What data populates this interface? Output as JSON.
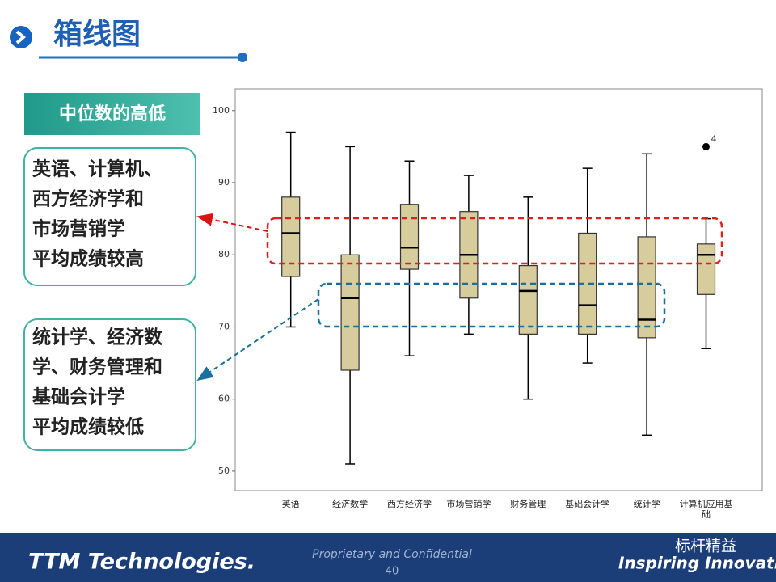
{
  "header": {
    "title": "箱线图"
  },
  "side": {
    "label": "中位数的高低",
    "box_high": {
      "lines": [
        "英语、计算机、",
        "西方经济学和",
        "市场营销学"
      ],
      "conclusion": "平均成绩较高"
    },
    "box_low": {
      "lines": [
        "统计学、经济数",
        "学、财务管理和",
        "基础会计学"
      ],
      "conclusion": "平均成绩较低"
    }
  },
  "chart_data": {
    "type": "boxplot",
    "categories": [
      "英语",
      "经济数学",
      "西方经济学",
      "市场营销学",
      "财务管理",
      "基础会计学",
      "统计学",
      "计算机应用基础"
    ],
    "whisker_low": [
      70,
      51,
      66,
      69,
      60,
      65,
      55,
      67
    ],
    "q1": [
      77,
      64,
      78,
      74,
      69,
      69,
      68.5,
      74.5
    ],
    "median": [
      83,
      74,
      81,
      80,
      75,
      73,
      71,
      80
    ],
    "q3": [
      88,
      80,
      87,
      86,
      78.5,
      83,
      82.5,
      81.5
    ],
    "whisker_high": [
      97,
      95,
      93,
      91,
      88,
      92,
      94,
      85
    ],
    "outliers": [
      {
        "category": "计算机应用基础",
        "value": 95,
        "label": "4"
      }
    ],
    "color": "#d6cc9c",
    "ylim": [
      47.3,
      103
    ],
    "yticks": [
      50,
      60,
      70,
      80,
      90,
      100
    ]
  },
  "footer": {
    "company": "TTM Technologies.",
    "note": "Proprietary and Confidential",
    "page": "40",
    "brand": "标杆精益",
    "slogan": "Inspiring Innovation"
  }
}
